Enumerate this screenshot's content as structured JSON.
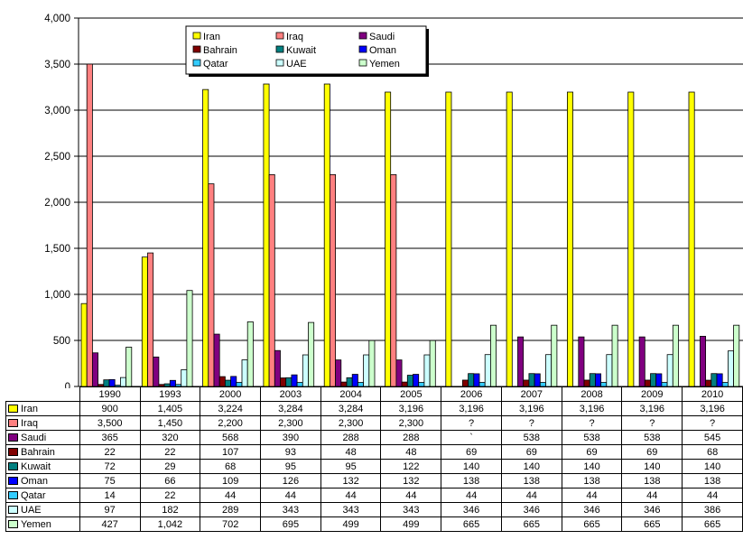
{
  "chart_data": {
    "type": "bar",
    "title": "",
    "xlabel": "",
    "ylabel": "",
    "ylim": [
      0,
      4000
    ],
    "yticks": [
      "0",
      "500",
      "1,000",
      "1,500",
      "2,000",
      "2,500",
      "3,000",
      "3,500",
      "4,000"
    ],
    "grid": true,
    "legend_position": "top-center",
    "categories": [
      "1990",
      "1993",
      "2000",
      "2003",
      "2004",
      "2005",
      "2006",
      "2007",
      "2008",
      "2009",
      "2010"
    ],
    "series": [
      {
        "name": "Iran",
        "color": "#ffff00",
        "values": [
          900,
          1405,
          3224,
          3284,
          3284,
          3196,
          3196,
          3196,
          3196,
          3196,
          3196
        ],
        "labels": [
          "900",
          "1,405",
          "3,224",
          "3,284",
          "3,284",
          "3,196",
          "3,196",
          "3,196",
          "3,196",
          "3,196",
          "3,196"
        ]
      },
      {
        "name": "Iraq",
        "color": "#ff8080",
        "values": [
          3500,
          1450,
          2200,
          2300,
          2300,
          2300,
          null,
          null,
          null,
          null,
          null
        ],
        "labels": [
          "3,500",
          "1,450",
          "2,200",
          "2,300",
          "2,300",
          "2,300",
          "?",
          "?",
          "?",
          "?",
          "?"
        ]
      },
      {
        "name": "Saudi",
        "color": "#800080",
        "values": [
          365,
          320,
          568,
          390,
          288,
          288,
          null,
          538,
          538,
          538,
          545
        ],
        "labels": [
          "365",
          "320",
          "568",
          "390",
          "288",
          "288",
          "`",
          "538",
          "538",
          "538",
          "545"
        ]
      },
      {
        "name": "Bahrain",
        "color": "#800000",
        "values": [
          22,
          22,
          107,
          93,
          48,
          48,
          69,
          69,
          69,
          69,
          68
        ],
        "labels": [
          "22",
          "22",
          "107",
          "93",
          "48",
          "48",
          "69",
          "69",
          "69",
          "69",
          "68"
        ]
      },
      {
        "name": "Kuwait",
        "color": "#008080",
        "values": [
          72,
          29,
          68,
          95,
          95,
          122,
          140,
          140,
          140,
          140,
          140
        ],
        "labels": [
          "72",
          "29",
          "68",
          "95",
          "95",
          "122",
          "140",
          "140",
          "140",
          "140",
          "140"
        ]
      },
      {
        "name": "Oman",
        "color": "#0000ff",
        "values": [
          75,
          66,
          109,
          126,
          132,
          132,
          138,
          138,
          138,
          138,
          138
        ],
        "labels": [
          "75",
          "66",
          "109",
          "126",
          "132",
          "132",
          "138",
          "138",
          "138",
          "138",
          "138"
        ]
      },
      {
        "name": "Qatar",
        "color": "#33ccff",
        "values": [
          14,
          22,
          44,
          44,
          44,
          44,
          44,
          44,
          44,
          44,
          44
        ],
        "labels": [
          "14",
          "22",
          "44",
          "44",
          "44",
          "44",
          "44",
          "44",
          "44",
          "44",
          "44"
        ]
      },
      {
        "name": "UAE",
        "color": "#ccffff",
        "values": [
          97,
          182,
          289,
          343,
          343,
          343,
          346,
          346,
          346,
          346,
          386
        ],
        "labels": [
          "97",
          "182",
          "289",
          "343",
          "343",
          "343",
          "346",
          "346",
          "346",
          "346",
          "386"
        ]
      },
      {
        "name": "Yemen",
        "color": "#ccffcc",
        "values": [
          427,
          1042,
          702,
          695,
          499,
          499,
          665,
          665,
          665,
          665,
          665
        ],
        "labels": [
          "427",
          "1,042",
          "702",
          "695",
          "499",
          "499",
          "665",
          "665",
          "665",
          "665",
          "665"
        ]
      }
    ]
  }
}
